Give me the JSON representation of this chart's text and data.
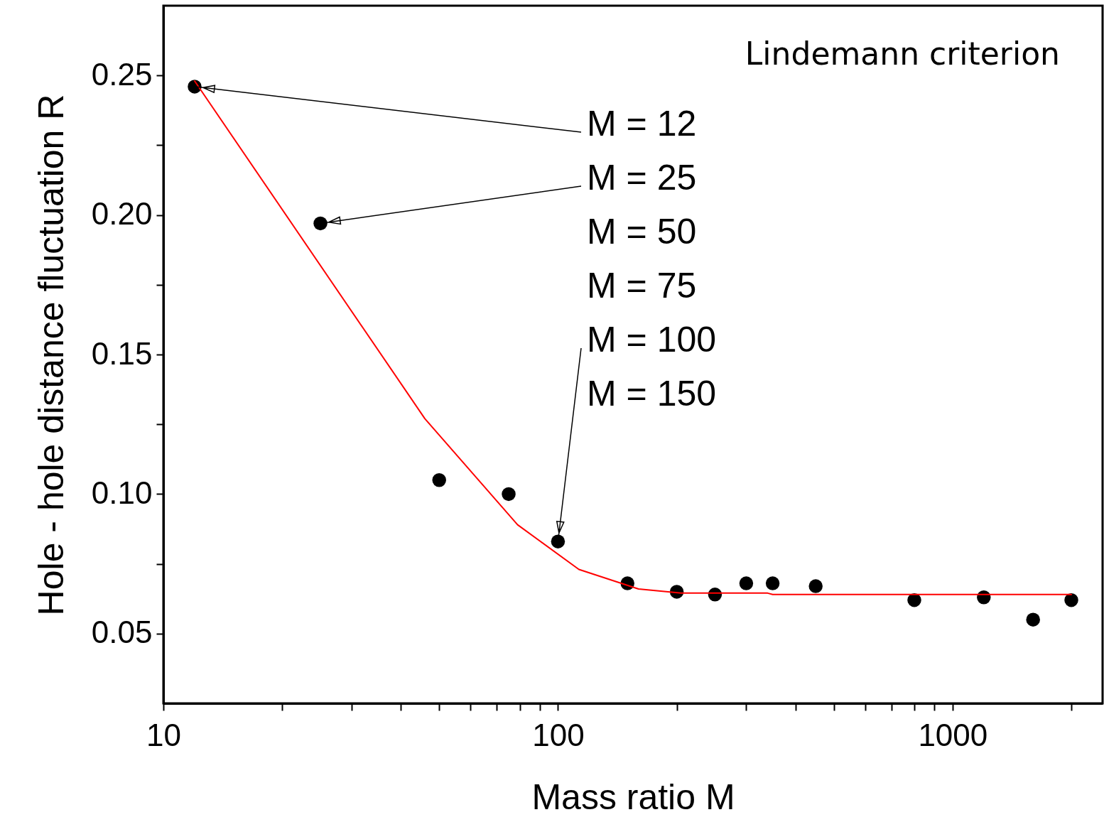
{
  "chart_data": {
    "type": "scatter",
    "xlabel": "Mass ratio M",
    "ylabel": "Hole - hole distance fluctuation  R",
    "log": "x",
    "grid": false,
    "marker": "circle",
    "xlim": [
      10,
      2400
    ],
    "ylim": [
      0.025,
      0.275
    ],
    "xticks": [
      10,
      {
        "value": 20,
        "label": null
      },
      {
        "value": 30,
        "label": null
      },
      {
        "value": 40,
        "label": null
      },
      {
        "value": 50,
        "label": null
      },
      {
        "value": 60,
        "label": null
      },
      {
        "value": 70,
        "label": null
      },
      {
        "value": 80,
        "label": null
      },
      {
        "value": 90,
        "label": null
      },
      100,
      {
        "value": 200,
        "label": null
      },
      {
        "value": 300,
        "label": null
      },
      {
        "value": 400,
        "label": null
      },
      {
        "value": 500,
        "label": null
      },
      {
        "value": 600,
        "label": null
      },
      {
        "value": 700,
        "label": null
      },
      {
        "value": 800,
        "label": null
      },
      {
        "value": 900,
        "label": null
      },
      1000,
      {
        "value": 2000,
        "label": null
      }
    ],
    "yticks": [
      {
        "value": 0.05,
        "label": "0.05"
      },
      {
        "value": 0.075,
        "label": null
      },
      {
        "value": 0.1,
        "label": "0.10"
      },
      {
        "value": 0.125,
        "label": null
      },
      {
        "value": 0.15,
        "label": "0.15"
      },
      {
        "value": 0.175,
        "label": null
      },
      {
        "value": 0.2,
        "label": "0.20"
      },
      {
        "value": 0.225,
        "label": null
      },
      {
        "value": 0.25,
        "label": "0.25"
      }
    ],
    "series": [
      {
        "color": "#000000",
        "x": [
          12,
          25,
          50,
          75,
          100,
          150,
          200,
          250,
          300,
          350,
          450,
          800,
          1200,
          1600,
          2000
        ],
        "values": [
          0.246,
          0.197,
          0.105,
          0.1,
          0.083,
          0.068,
          0.065,
          0.064,
          0.068,
          0.068,
          0.067,
          0.062,
          0.063,
          0.055,
          0.062
        ]
      },
      {
        "type": "line",
        "color": "#ff0000",
        "marker": "none",
        "x": [
          12,
          46,
          79,
          113,
          160,
          205,
          340,
          350,
          2000
        ],
        "values": [
          0.248,
          0.127,
          0.089,
          0.073,
          0.066,
          0.0645,
          0.0645,
          0.064,
          0.064
        ]
      }
    ],
    "annotations": [
      "Lindemann criterion",
      {
        "text": "M =  12",
        "x": 12,
        "y": 0.246
      },
      {
        "text": "M =  25",
        "x": 25,
        "y": 0.197
      },
      "M =  50",
      "M =  75",
      {
        "text": "M = 100",
        "x": 100,
        "y": 0.083
      },
      "M = 150"
    ]
  }
}
